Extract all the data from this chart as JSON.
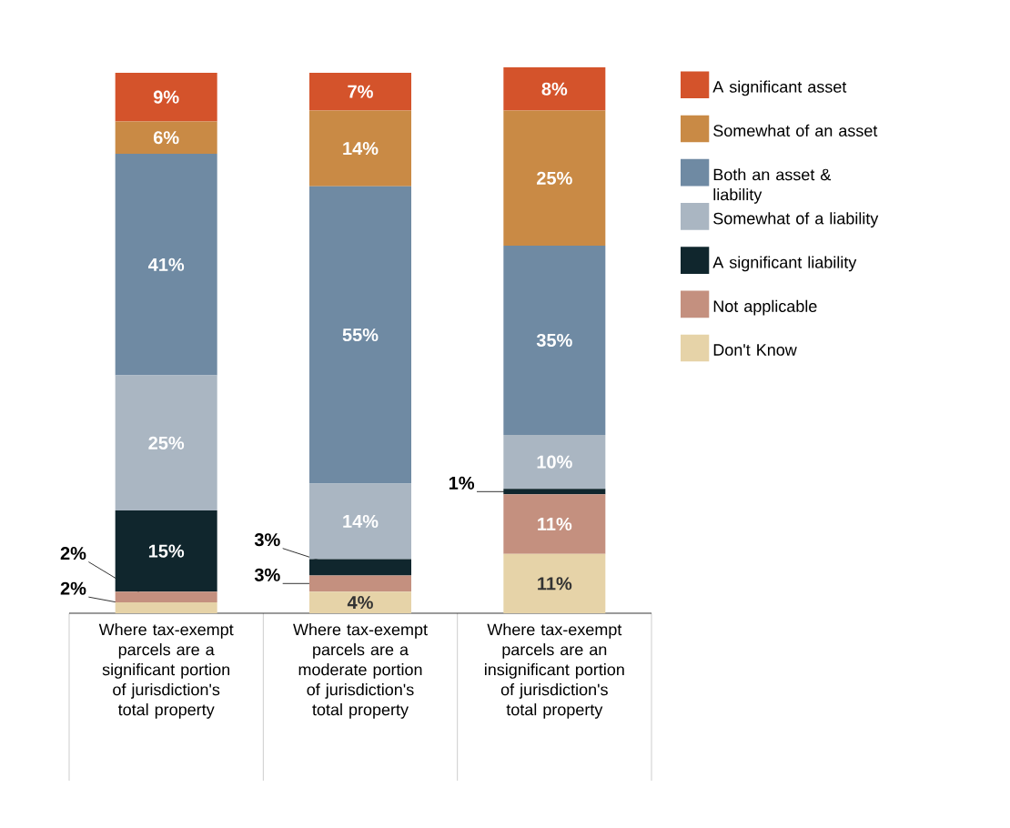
{
  "chart_data": {
    "type": "bar",
    "stacked": true,
    "legend": "right",
    "categories": [
      "Where tax-exempt parcels are a significant portion of jurisdiction's total property",
      "Where tax-exempt parcels are a moderate portion of jurisdiction's total property",
      "Where tax-exempt parcels are an insignificant portion of jurisdiction's total property"
    ],
    "series": [
      {
        "name": "Don't Know",
        "color": "#e6d3a8",
        "values": [
          2,
          4,
          11
        ],
        "value_labels": [
          "2%",
          "4%",
          "11%"
        ]
      },
      {
        "name": "Not applicable",
        "color": "#c4907f",
        "values": [
          2,
          3,
          11
        ],
        "value_labels": [
          "2%",
          "3%",
          "11%"
        ]
      },
      {
        "name": "A significant liability",
        "color": "#10262d",
        "values": [
          15,
          3,
          1
        ],
        "value_labels": [
          "15%",
          "3%",
          "1%"
        ]
      },
      {
        "name": "Somewhat of a liability",
        "color": "#aab6c2",
        "values": [
          25,
          14,
          10
        ],
        "value_labels": [
          "25%",
          "14%",
          "10%"
        ]
      },
      {
        "name": "Both an asset & liability",
        "color": "#6f8aa3",
        "values": [
          41,
          55,
          35
        ],
        "value_labels": [
          "41%",
          "55%",
          "35%"
        ]
      },
      {
        "name": "Somewhat of an asset",
        "color": "#c98a45",
        "values": [
          6,
          14,
          25
        ],
        "value_labels": [
          "6%",
          "14%",
          "25%"
        ]
      },
      {
        "name": "A significant asset",
        "color": "#d4532b",
        "values": [
          9,
          7,
          8
        ],
        "value_labels": [
          "9%",
          "7%",
          "8%"
        ]
      }
    ]
  }
}
